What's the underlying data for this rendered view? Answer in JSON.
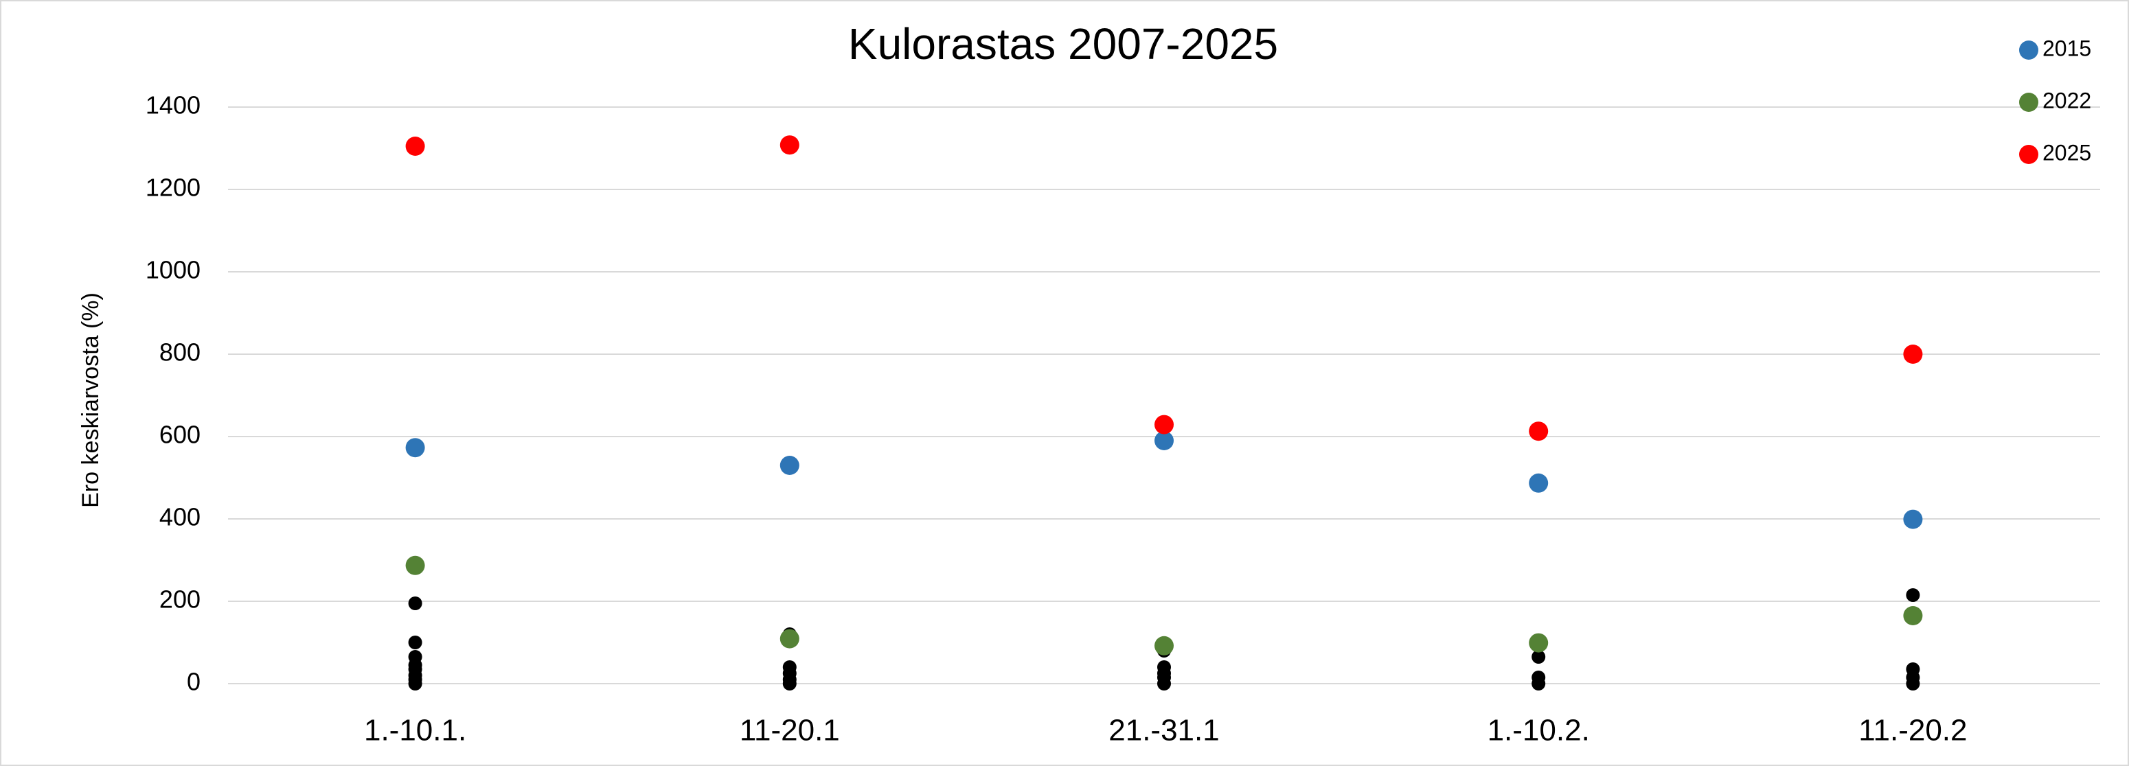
{
  "chart_data": {
    "type": "scatter",
    "title": "Kulorastas 2007-2025",
    "y_label": "Ero keskiarvosta (%)",
    "categories": [
      "1.-10.1.",
      "11-20.1",
      "21.-31.1",
      "1.-10.2.",
      "11.-20.2"
    ],
    "series": [
      {
        "name": "2015",
        "color": "#2e75b6",
        "values": [
          573,
          530,
          590,
          487,
          399
        ]
      },
      {
        "name": "2022",
        "color": "#548235",
        "values": [
          287,
          109,
          92,
          99,
          165
        ]
      },
      {
        "name": "2025",
        "color": "#ff0000",
        "values": [
          1305,
          1308,
          629,
          613,
          800
        ]
      },
      {
        "color": "#000000",
        "values": [
          [
            195,
            100,
            65,
            45,
            35,
            20,
            10,
            0
          ],
          [
            120,
            40,
            25,
            10,
            0
          ],
          [
            80,
            40,
            25,
            15,
            0
          ],
          [
            65,
            15,
            0
          ],
          [
            215,
            35,
            15,
            0
          ]
        ]
      }
    ],
    "ylim": [
      0,
      1400
    ],
    "yticks": [
      0,
      200,
      400,
      600,
      800,
      1000,
      1200,
      1400
    ],
    "grid": true,
    "legend": "top-right"
  }
}
